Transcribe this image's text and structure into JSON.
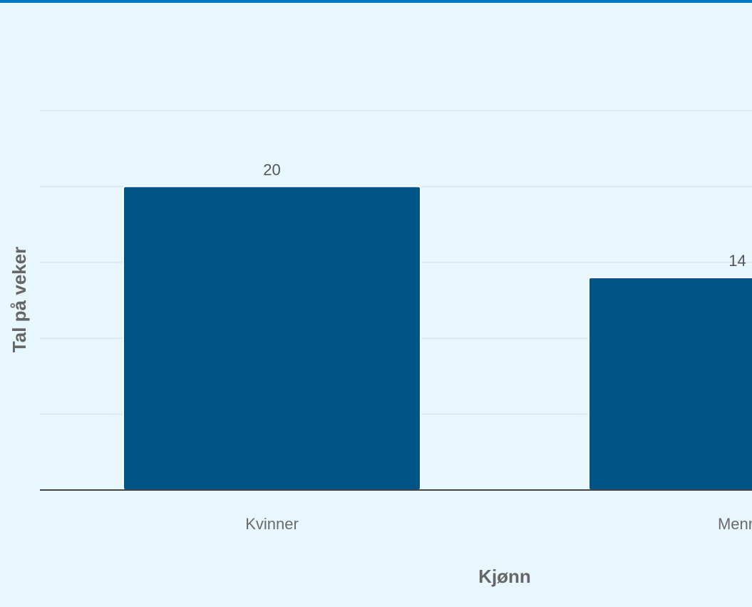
{
  "chart_data": {
    "type": "bar",
    "categories": [
      "Kvinner",
      "Menn"
    ],
    "values": [
      20,
      14
    ],
    "title": "",
    "xlabel": "Kjønn",
    "ylabel": "Tal på veker",
    "ylim": [
      0,
      25
    ],
    "grid": true,
    "colors": {
      "bar": "#005587",
      "grid": "#dfe7ec",
      "axis": "#444444",
      "accent": "#0078c1"
    }
  }
}
